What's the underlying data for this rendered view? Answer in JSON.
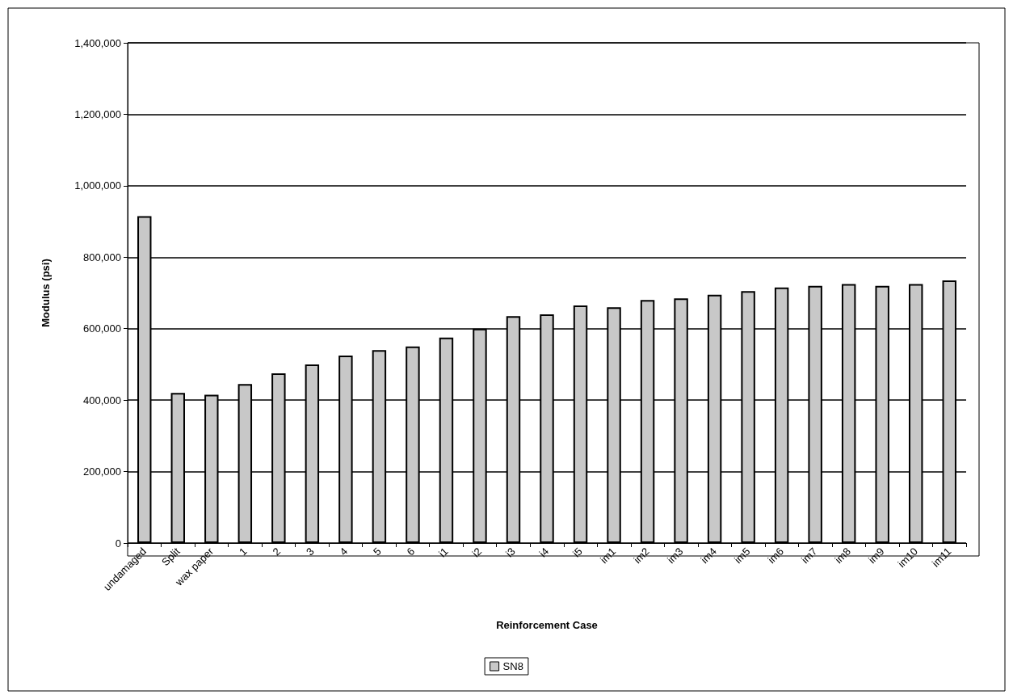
{
  "chart_data": {
    "type": "bar",
    "xlabel": "Reinforcement Case",
    "ylabel": "Modulus (psi)",
    "categories": [
      "undamaged",
      "Split",
      "wax paper",
      "1",
      "2",
      "3",
      "4",
      "5",
      "6",
      "i1",
      "i2",
      "i3",
      "i4",
      "i5",
      "im1",
      "im2",
      "im3",
      "im4",
      "im5",
      "im6",
      "im7",
      "im8",
      "im9",
      "im10",
      "im11"
    ],
    "series": [
      {
        "name": "SN8",
        "color": "#c8c8c8",
        "values": [
          915000,
          420000,
          415000,
          445000,
          475000,
          500000,
          525000,
          540000,
          550000,
          575000,
          600000,
          635000,
          640000,
          665000,
          660000,
          680000,
          685000,
          695000,
          705000,
          715000,
          720000,
          725000,
          720000,
          725000,
          735000
        ]
      }
    ],
    "ylim": [
      0,
      1400000
    ],
    "yticks": [
      0,
      {
        "value": 200000,
        "label": "200,000"
      },
      {
        "value": 400000,
        "label": "400,000"
      },
      {
        "value": 600000,
        "label": "600,000"
      },
      {
        "value": 800000,
        "label": "800,000"
      },
      {
        "value": 1000000,
        "label": "1,000,000"
      },
      {
        "value": 1200000,
        "label": "1,200,000"
      },
      {
        "value": 1400000,
        "label": "1,400,000"
      }
    ],
    "grid": "y",
    "legend": "bottom"
  }
}
